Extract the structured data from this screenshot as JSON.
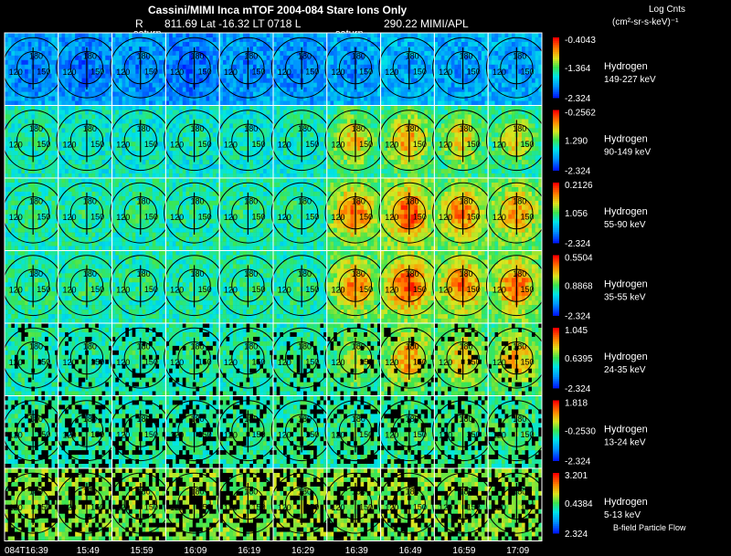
{
  "chart_data": {
    "type": "heatmap",
    "title": "Cassini/MIMI Inca mTOF  2004-084   Stare   Ions Only",
    "header_line2": {
      "r_label": "R",
      "r_lat_lt": "811.69 Lat -16.32 LT 0718 L",
      "l_value_source": "290.22  MIMI/APL"
    },
    "colorbar_title": "Log Cnts",
    "colorbar_units": "(cm²-sr-s-keV)⁻¹",
    "saturn_labels": [
      "saturn",
      "saturn"
    ],
    "time_labels": [
      "084T16:39",
      "15:49",
      "15:59",
      "16:09",
      "16:19",
      "16:29",
      "16:39",
      "16:49",
      "16:59",
      "17:09"
    ],
    "grid_cells_per_panel": 16,
    "polar_angle_labels": [
      "180",
      "150",
      "120"
    ],
    "rows": [
      {
        "species": "Hydrogen",
        "energy": "149-227 keV",
        "max": "-0.4043",
        "mid": "-1.364",
        "min": "-2.324",
        "peak": [
          0.12,
          0.1,
          0.13,
          0.08,
          0.14,
          0.12,
          0.16,
          0.2,
          0.18,
          0.17
        ],
        "base": [
          0.22,
          0.2,
          0.22,
          0.18,
          0.22,
          0.22,
          0.24,
          0.26,
          0.24,
          0.24
        ]
      },
      {
        "species": "Hydrogen",
        "energy": "90-149 keV",
        "max": "-0.2562",
        "mid": "1.290",
        "min": "-2.324",
        "peak": [
          0.42,
          0.4,
          0.4,
          0.4,
          0.4,
          0.42,
          0.74,
          0.78,
          0.72,
          0.68
        ],
        "base": [
          0.38,
          0.37,
          0.36,
          0.36,
          0.36,
          0.37,
          0.42,
          0.45,
          0.42,
          0.4
        ]
      },
      {
        "species": "Hydrogen",
        "energy": "55-90 keV",
        "max": "0.2126",
        "mid": "1.056",
        "min": "-2.324",
        "peak": [
          0.45,
          0.44,
          0.44,
          0.44,
          0.44,
          0.45,
          0.86,
          0.92,
          0.84,
          0.8
        ],
        "base": [
          0.4,
          0.4,
          0.4,
          0.4,
          0.4,
          0.4,
          0.5,
          0.52,
          0.5,
          0.48
        ]
      },
      {
        "species": "Hydrogen",
        "energy": "35-55 keV",
        "max": "0.5504",
        "mid": "0.8868",
        "min": "-2.324",
        "peak": [
          0.46,
          0.45,
          0.45,
          0.45,
          0.45,
          0.46,
          0.82,
          0.94,
          0.86,
          0.88
        ],
        "base": [
          0.4,
          0.4,
          0.4,
          0.4,
          0.4,
          0.4,
          0.48,
          0.52,
          0.5,
          0.5
        ]
      },
      {
        "species": "Hydrogen",
        "energy": "24-35 keV",
        "max": "1.045",
        "mid": "0.6395",
        "min": "-2.324",
        "peak": [
          0.46,
          0.45,
          0.45,
          0.46,
          0.45,
          0.46,
          0.62,
          0.8,
          0.72,
          0.76
        ],
        "base": [
          0.4,
          0.4,
          0.4,
          0.4,
          0.4,
          0.4,
          0.44,
          0.48,
          0.46,
          0.46
        ]
      },
      {
        "species": "Hydrogen",
        "energy": "13-24 keV",
        "max": "1.818",
        "mid": "-0.2530",
        "min": "-2.324",
        "peak": [
          0.46,
          0.46,
          0.46,
          0.46,
          0.46,
          0.46,
          0.48,
          0.5,
          0.5,
          0.5
        ],
        "base": [
          0.42,
          0.42,
          0.42,
          0.42,
          0.42,
          0.42,
          0.42,
          0.44,
          0.44,
          0.44
        ]
      },
      {
        "species": "Hydrogen",
        "energy": "5-13 keV",
        "max": "3.201",
        "mid": "0.4384",
        "min": "2.324",
        "peak": [
          0.58,
          0.58,
          0.58,
          0.58,
          0.58,
          0.58,
          0.58,
          0.58,
          0.58,
          0.58
        ],
        "base": [
          0.55,
          0.55,
          0.55,
          0.55,
          0.55,
          0.55,
          0.55,
          0.55,
          0.55,
          0.55
        ]
      }
    ],
    "footnote": "B-field Particle Flow"
  }
}
